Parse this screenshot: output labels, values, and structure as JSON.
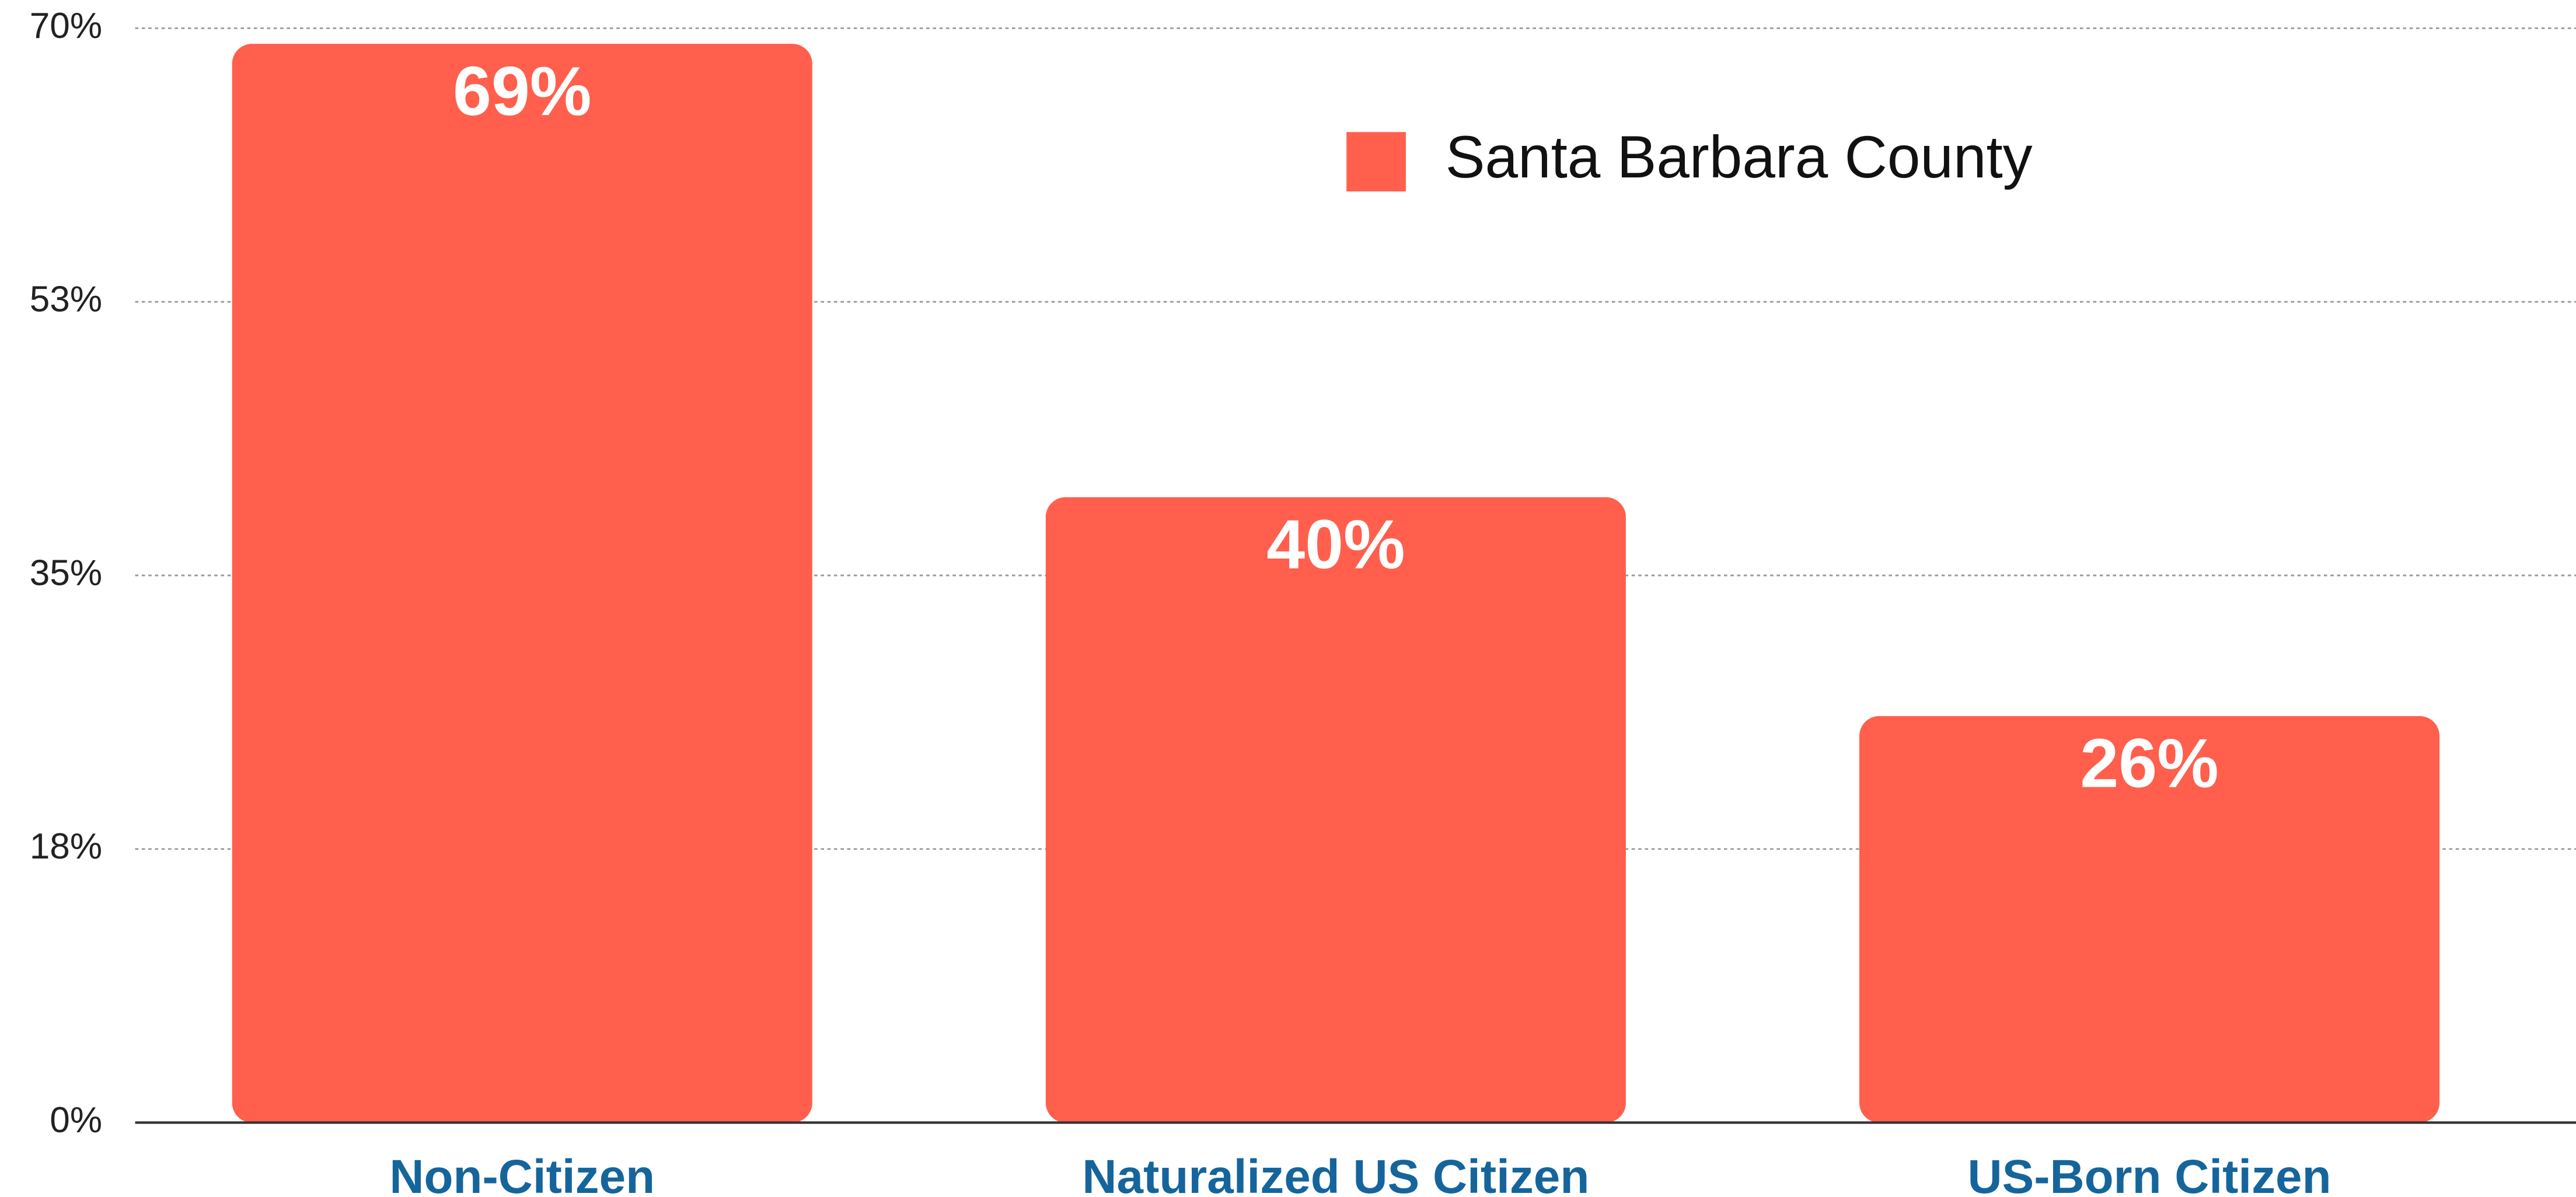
{
  "chart_data": {
    "type": "bar",
    "categories": [
      "Non-Citizen",
      "Naturalized US Citizen",
      "US-Born Citizen"
    ],
    "series": [
      {
        "name": "Santa Barbara County",
        "color": "#ff5f4c",
        "values": [
          69,
          40,
          26
        ],
        "value_labels": [
          "69%",
          "40%",
          "26%"
        ]
      }
    ],
    "ylim": [
      0,
      70
    ],
    "yticks": [
      {
        "value": 0,
        "label": "0%"
      },
      {
        "value": 17.5,
        "label": "18%"
      },
      {
        "value": 35,
        "label": "35%"
      },
      {
        "value": 52.5,
        "label": "53%"
      },
      {
        "value": 70,
        "label": "70%"
      }
    ],
    "grid": true,
    "legend": "top-right"
  }
}
